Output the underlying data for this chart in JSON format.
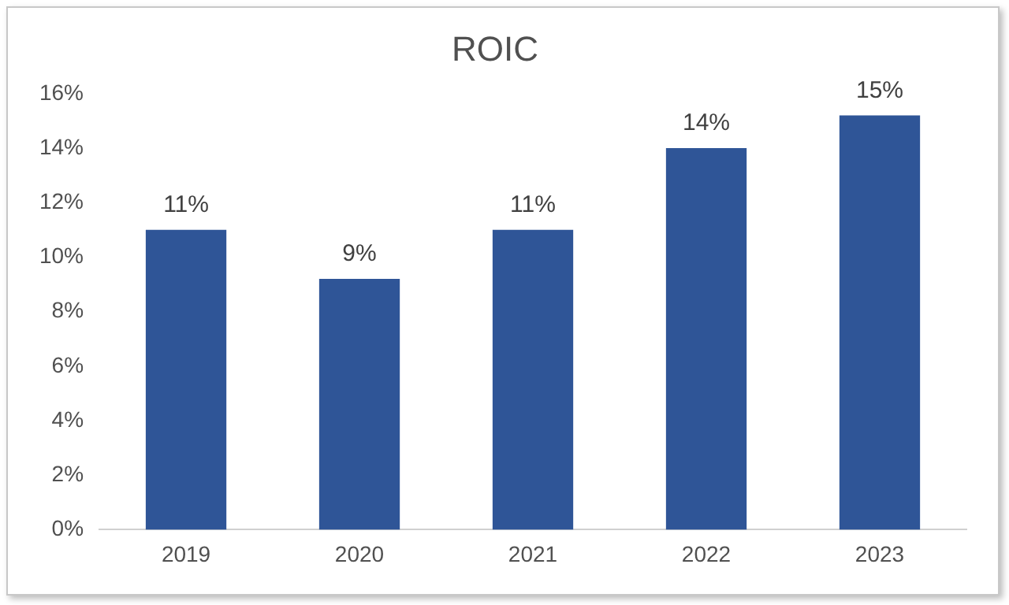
{
  "chart_data": {
    "type": "bar",
    "title": "ROIC",
    "categories": [
      "2019",
      "2020",
      "2021",
      "2022",
      "2023"
    ],
    "values": [
      11,
      9.2,
      11,
      14,
      15.2
    ],
    "value_labels": [
      "11%",
      "9%",
      "11%",
      "14%",
      "15%"
    ],
    "color": "#2f5597",
    "ylim": [
      0,
      16
    ],
    "yticks": [
      {
        "value": 0,
        "label": "0%"
      },
      {
        "value": 2,
        "label": "2%"
      },
      {
        "value": 4,
        "label": "4%"
      },
      {
        "value": 6,
        "label": "6%"
      },
      {
        "value": 8,
        "label": "8%"
      },
      {
        "value": 10,
        "label": "10%"
      },
      {
        "value": 12,
        "label": "12%"
      },
      {
        "value": 14,
        "label": "14%"
      },
      {
        "value": 16,
        "label": "16%"
      }
    ],
    "grid": false
  }
}
